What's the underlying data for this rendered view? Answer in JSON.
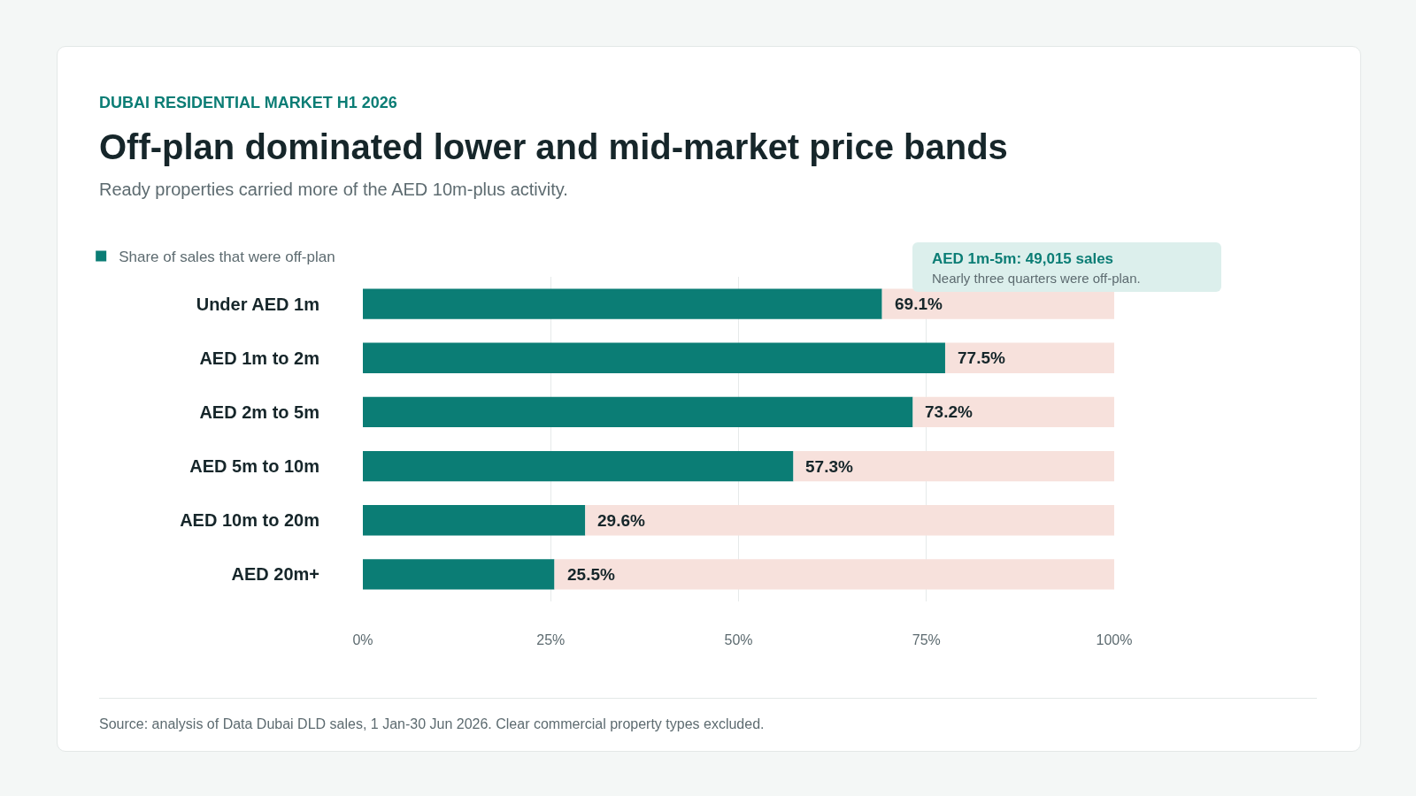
{
  "chart_data": {
    "type": "bar",
    "orientation": "horizontal",
    "stacked": true,
    "title": "Off-plan dominated lower and mid-market price bands",
    "subtitle": "DUBAI RESIDENTIAL MARKET H1 2026",
    "annotations": [
      "AED 1m-5m: 49,015 sales",
      "Nearly three quarters were off-plan.",
      "Ready properties carried more of the AED 10m-plus activity.",
      "Source: analysis of Data Dubai DLD sales, 1 Jan-30 Jun 2026. Clear commercial property types excluded."
    ],
    "categories": [
      "Under AED 1m",
      "AED 1m to 2m",
      "AED 2m to 5m",
      "AED 5m to 10m",
      "AED 10m to 20m",
      "AED 20m+"
    ],
    "series": [
      {
        "name": "Share of sales that were off-plan",
        "color": "#0b7d75",
        "values": [
          69.1,
          77.5,
          73.2,
          57.3,
          29.6,
          25.5
        ],
        "value_labels": [
          "69.1%",
          "77.5%",
          "73.2%",
          "57.3%",
          "29.6%",
          "25.5%"
        ]
      },
      {
        "color": "#f7e1dc",
        "values": [
          30.9,
          22.5,
          26.8,
          42.7,
          70.4,
          74.5
        ]
      }
    ],
    "xlim": [
      0,
      100
    ],
    "xticks": [
      {
        "value": 0,
        "label": "0%"
      },
      {
        "value": 25,
        "label": "25%"
      },
      {
        "value": 50,
        "label": "50%"
      },
      {
        "value": 75,
        "label": "75%"
      },
      {
        "value": 100,
        "label": "100%"
      }
    ],
    "grid": "x",
    "legend": "top left"
  }
}
